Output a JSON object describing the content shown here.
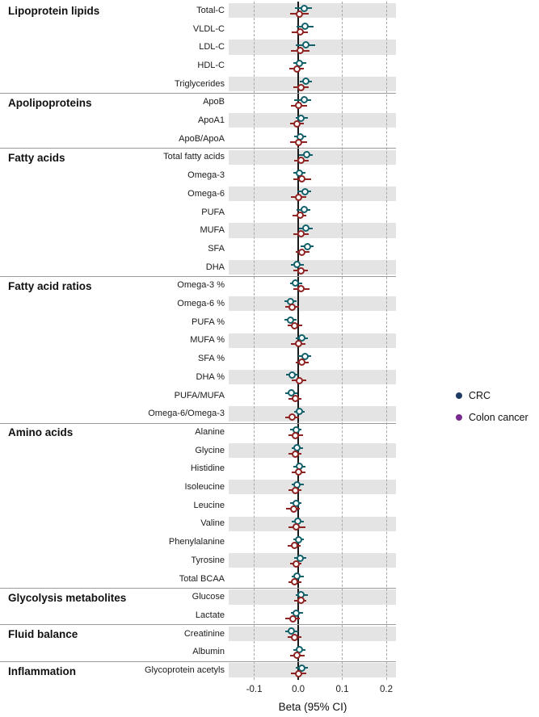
{
  "chart_data": {
    "type": "forest",
    "xlabel": "Beta (95% CI)",
    "x_ticks": [
      {
        "label": "-0.1",
        "value": -0.1
      },
      {
        "label": "0.0",
        "value": 0.0
      },
      {
        "label": "0.1",
        "value": 0.1
      },
      {
        "label": "0.2",
        "value": 0.2
      }
    ],
    "xlim": [
      -0.158,
      0.222
    ],
    "grid": "dashed-vertical-at-ticks",
    "zero_line_value": 0.0,
    "legend_position": "right-middle",
    "style": {
      "band_color": "#e4e4e4",
      "gridline_color": "#a8a8a8",
      "zero_line_color": "#1a1a1a",
      "separator_color": "#9a9a9a"
    },
    "series": [
      {
        "name": "CRC",
        "plot_color": "#11606a",
        "legend_color": "#1e3a66"
      },
      {
        "name": "Colon cancer",
        "plot_color": "#8e2322",
        "legend_color": "#7a2b8f"
      }
    ],
    "groups": [
      {
        "label": "Lipoprotein lipids",
        "rows": [
          {
            "label": "Total-C",
            "estimates": [
              {
                "beta": 0.013,
                "ci": [
                  -0.008,
                  0.032
                ]
              },
              {
                "beta": 0.002,
                "ci": [
                  -0.018,
                  0.023
                ]
              }
            ]
          },
          {
            "label": "VLDL-C",
            "estimates": [
              {
                "beta": 0.016,
                "ci": [
                  -0.004,
                  0.035
                ]
              },
              {
                "beta": 0.004,
                "ci": [
                  -0.014,
                  0.021
                ]
              }
            ]
          },
          {
            "label": "LDL-C",
            "estimates": [
              {
                "beta": 0.017,
                "ci": [
                  -0.005,
                  0.038
                ]
              },
              {
                "beta": 0.004,
                "ci": [
                  -0.017,
                  0.026
                ]
              }
            ]
          },
          {
            "label": "HDL-C",
            "estimates": [
              {
                "beta": 0.002,
                "ci": [
                  -0.012,
                  0.018
                ]
              },
              {
                "beta": -0.003,
                "ci": [
                  -0.02,
                  0.013
                ]
              }
            ]
          },
          {
            "label": "Triglycerides",
            "estimates": [
              {
                "beta": 0.018,
                "ci": [
                  0.004,
                  0.032
                ]
              },
              {
                "beta": 0.006,
                "ci": [
                  -0.011,
                  0.023
                ]
              }
            ]
          }
        ]
      },
      {
        "label": "Apolipoproteins",
        "rows": [
          {
            "label": "ApoB",
            "estimates": [
              {
                "beta": 0.013,
                "ci": [
                  -0.009,
                  0.029
                ]
              },
              {
                "beta": 0.0,
                "ci": [
                  -0.017,
                  0.02
                ]
              }
            ]
          },
          {
            "label": "ApoA1",
            "estimates": [
              {
                "beta": 0.007,
                "ci": [
                  -0.006,
                  0.021
                ]
              },
              {
                "beta": -0.002,
                "ci": [
                  -0.018,
                  0.013
                ]
              }
            ]
          },
          {
            "label": "ApoB/ApoA",
            "estimates": [
              {
                "beta": 0.004,
                "ci": [
                  -0.01,
                  0.018
                ]
              },
              {
                "beta": 0.001,
                "ci": [
                  -0.018,
                  0.021
                ]
              }
            ]
          }
        ]
      },
      {
        "label": "Fatty acids",
        "rows": [
          {
            "label": "Total fatty acids",
            "estimates": [
              {
                "beta": 0.019,
                "ci": [
                  0.002,
                  0.033
                ]
              },
              {
                "beta": 0.006,
                "ci": [
                  -0.01,
                  0.023
                ]
              }
            ]
          },
          {
            "label": "Omega-3",
            "estimates": [
              {
                "beta": 0.002,
                "ci": [
                  -0.012,
                  0.016
                ]
              },
              {
                "beta": 0.009,
                "ci": [
                  -0.011,
                  0.03
                ]
              }
            ]
          },
          {
            "label": "Omega-6",
            "estimates": [
              {
                "beta": 0.015,
                "ci": [
                  -0.002,
                  0.029
                ]
              },
              {
                "beta": 0.001,
                "ci": [
                  -0.016,
                  0.018
                ]
              }
            ]
          },
          {
            "label": "PUFA",
            "estimates": [
              {
                "beta": 0.013,
                "ci": [
                  -0.004,
                  0.027
                ]
              },
              {
                "beta": 0.004,
                "ci": [
                  -0.013,
                  0.019
                ]
              }
            ]
          },
          {
            "label": "MUFA",
            "estimates": [
              {
                "beta": 0.018,
                "ci": [
                  0.002,
                  0.033
                ]
              },
              {
                "beta": 0.006,
                "ci": [
                  -0.011,
                  0.023
                ]
              }
            ]
          },
          {
            "label": "SFA",
            "estimates": [
              {
                "beta": 0.021,
                "ci": [
                  0.006,
                  0.035
                ]
              },
              {
                "beta": 0.009,
                "ci": [
                  -0.006,
                  0.026
                ]
              }
            ]
          },
          {
            "label": "DHA",
            "estimates": [
              {
                "beta": -0.002,
                "ci": [
                  -0.016,
                  0.012
                ]
              },
              {
                "beta": 0.006,
                "ci": [
                  -0.012,
                  0.022
                ]
              }
            ]
          }
        ]
      },
      {
        "label": "Fatty acid ratios",
        "rows": [
          {
            "label": "Omega-3 %",
            "estimates": [
              {
                "beta": -0.006,
                "ci": [
                  -0.018,
                  0.009
                ]
              },
              {
                "beta": 0.007,
                "ci": [
                  -0.011,
                  0.026
                ]
              }
            ]
          },
          {
            "label": "Omega-6 %",
            "estimates": [
              {
                "beta": -0.018,
                "ci": [
                  -0.032,
                  -0.004
                ]
              },
              {
                "beta": -0.014,
                "ci": [
                  -0.03,
                  0.002
                ]
              }
            ]
          },
          {
            "label": "PUFA %",
            "estimates": [
              {
                "beta": -0.018,
                "ci": [
                  -0.032,
                  -0.004
                ]
              },
              {
                "beta": -0.008,
                "ci": [
                  -0.024,
                  0.009
                ]
              }
            ]
          },
          {
            "label": "MUFA %",
            "estimates": [
              {
                "beta": 0.009,
                "ci": [
                  -0.005,
                  0.022
                ]
              },
              {
                "beta": 0.0,
                "ci": [
                  -0.017,
                  0.016
                ]
              }
            ]
          },
          {
            "label": "SFA %",
            "estimates": [
              {
                "beta": 0.015,
                "ci": [
                  0.0,
                  0.029
                ]
              },
              {
                "beta": 0.009,
                "ci": [
                  -0.005,
                  0.024
                ]
              }
            ]
          },
          {
            "label": "DHA %",
            "estimates": [
              {
                "beta": -0.014,
                "ci": [
                  -0.028,
                  0.0
                ]
              },
              {
                "beta": 0.003,
                "ci": [
                  -0.014,
                  0.019
                ]
              }
            ]
          },
          {
            "label": "PUFA/MUFA",
            "estimates": [
              {
                "beta": -0.016,
                "ci": [
                  -0.029,
                  -0.002
                ]
              },
              {
                "beta": -0.007,
                "ci": [
                  -0.023,
                  0.008
                ]
              }
            ]
          },
          {
            "label": "Omega-6/Omega-3",
            "estimates": [
              {
                "beta": 0.002,
                "ci": [
                  -0.01,
                  0.014
                ]
              },
              {
                "beta": -0.013,
                "ci": [
                  -0.03,
                  0.002
                ]
              }
            ]
          }
        ]
      },
      {
        "label": "Amino acids",
        "rows": [
          {
            "label": "Alanine",
            "estimates": [
              {
                "beta": -0.005,
                "ci": [
                  -0.018,
                  0.008
                ]
              },
              {
                "beta": -0.006,
                "ci": [
                  -0.022,
                  0.01
                ]
              }
            ]
          },
          {
            "label": "Glycine",
            "estimates": [
              {
                "beta": -0.002,
                "ci": [
                  -0.014,
                  0.01
                ]
              },
              {
                "beta": -0.006,
                "ci": [
                  -0.022,
                  0.008
                ]
              }
            ]
          },
          {
            "label": "Histidine",
            "estimates": [
              {
                "beta": 0.002,
                "ci": [
                  -0.011,
                  0.016
                ]
              },
              {
                "beta": 0.0,
                "ci": [
                  -0.015,
                  0.016
                ]
              }
            ]
          },
          {
            "label": "Isoleucine",
            "estimates": [
              {
                "beta": -0.002,
                "ci": [
                  -0.015,
                  0.012
                ]
              },
              {
                "beta": -0.007,
                "ci": [
                  -0.022,
                  0.008
                ]
              }
            ]
          },
          {
            "label": "Leucine",
            "estimates": [
              {
                "beta": -0.005,
                "ci": [
                  -0.018,
                  0.008
                ]
              },
              {
                "beta": -0.011,
                "ci": [
                  -0.027,
                  0.004
                ]
              }
            ]
          },
          {
            "label": "Valine",
            "estimates": [
              {
                "beta": -0.001,
                "ci": [
                  -0.014,
                  0.013
                ]
              },
              {
                "beta": -0.005,
                "ci": [
                  -0.022,
                  0.016
                ]
              }
            ]
          },
          {
            "label": "Phenylalanine",
            "estimates": [
              {
                "beta": 0.0,
                "ci": [
                  -0.012,
                  0.013
                ]
              },
              {
                "beta": -0.009,
                "ci": [
                  -0.024,
                  0.006
                ]
              }
            ]
          },
          {
            "label": "Tyrosine",
            "estimates": [
              {
                "beta": 0.004,
                "ci": [
                  -0.01,
                  0.018
                ]
              },
              {
                "beta": -0.005,
                "ci": [
                  -0.018,
                  0.008
                ]
              }
            ]
          },
          {
            "label": "Total BCAA",
            "estimates": [
              {
                "beta": -0.002,
                "ci": [
                  -0.015,
                  0.012
                ]
              },
              {
                "beta": -0.008,
                "ci": [
                  -0.023,
                  0.007
                ]
              }
            ]
          }
        ]
      },
      {
        "label": "Glycolysis metabolites",
        "rows": [
          {
            "label": "Glucose",
            "estimates": [
              {
                "beta": 0.007,
                "ci": [
                  -0.006,
                  0.021
                ]
              },
              {
                "beta": 0.006,
                "ci": [
                  -0.009,
                  0.019
                ]
              }
            ]
          },
          {
            "label": "Lactate",
            "estimates": [
              {
                "beta": -0.004,
                "ci": [
                  -0.017,
                  0.01
                ]
              },
              {
                "beta": -0.012,
                "ci": [
                  -0.029,
                  0.003
                ]
              }
            ]
          }
        ]
      },
      {
        "label": "Fluid balance",
        "rows": [
          {
            "label": "Creatinine",
            "estimates": [
              {
                "beta": -0.015,
                "ci": [
                  -0.029,
                  0.0
                ]
              },
              {
                "beta": -0.008,
                "ci": [
                  -0.024,
                  0.007
                ]
              }
            ]
          },
          {
            "label": "Albumin",
            "estimates": [
              {
                "beta": 0.003,
                "ci": [
                  -0.011,
                  0.016
                ]
              },
              {
                "beta": -0.002,
                "ci": [
                  -0.018,
                  0.015
                ]
              }
            ]
          }
        ]
      },
      {
        "label": "Inflammation",
        "rows": [
          {
            "label": "Glycoprotein acetyls",
            "estimates": [
              {
                "beta": 0.009,
                "ci": [
                  -0.006,
                  0.022
                ]
              },
              {
                "beta": 0.0,
                "ci": [
                  -0.017,
                  0.018
                ]
              }
            ]
          }
        ]
      }
    ]
  }
}
